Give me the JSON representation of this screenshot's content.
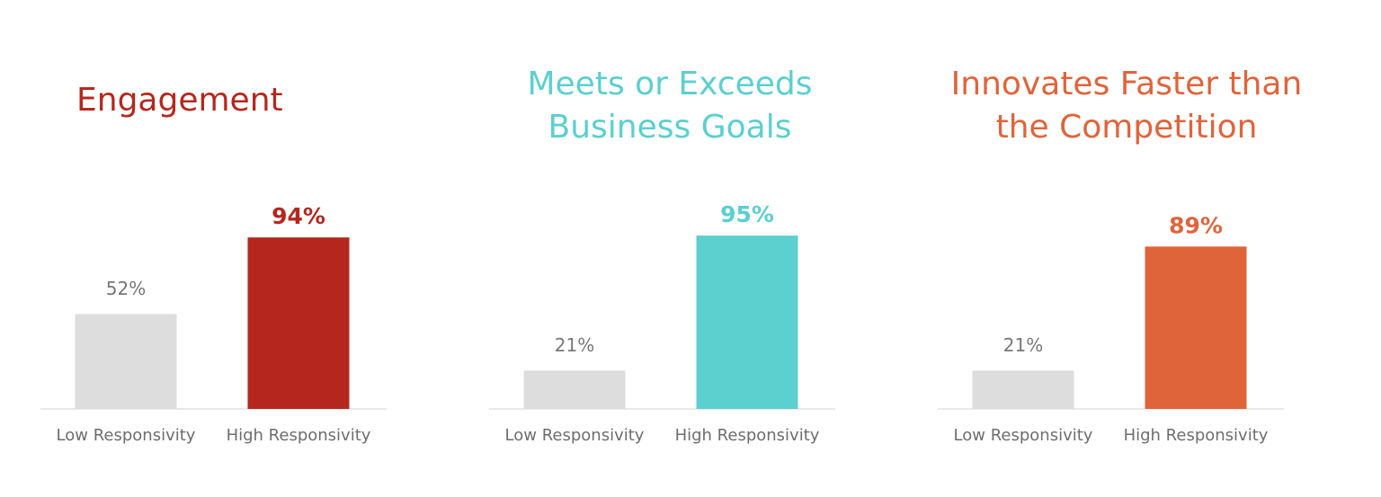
{
  "chart_data": [
    {
      "type": "bar",
      "title": [
        "Engagement"
      ],
      "title_color": "#b5271e",
      "categories": [
        "Low Responsivity",
        "High Responsivity"
      ],
      "values": [
        52,
        94
      ],
      "value_labels": [
        "52%",
        "94%"
      ],
      "colors": [
        "#dcdddc",
        "#b5271e"
      ]
    },
    {
      "type": "bar",
      "title": [
        "Meets or Exceeds",
        "Business Goals"
      ],
      "title_color": "#5ccfcf",
      "categories": [
        "Low Responsivity",
        "High Responsivity"
      ],
      "values": [
        21,
        95
      ],
      "value_labels": [
        "21%",
        "95%"
      ],
      "colors": [
        "#dcdddc",
        "#5ccfcf"
      ]
    },
    {
      "type": "bar",
      "title": [
        "Innovates Faster than",
        "the Competition"
      ],
      "title_color": "#e0643a",
      "categories": [
        "Low Responsivity",
        "High Responsivity"
      ],
      "values": [
        21,
        89
      ],
      "value_labels": [
        "21%",
        "89%"
      ],
      "colors": [
        "#dcdddc",
        "#e0643a"
      ]
    }
  ]
}
